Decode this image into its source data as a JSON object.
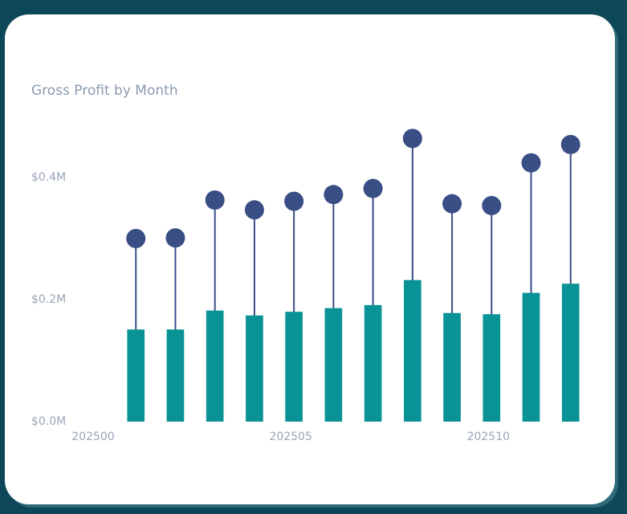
{
  "chart_data": {
    "type": "lollipop-bar",
    "title": "Gross Profit by Month",
    "x": [
      202501,
      202502,
      202503,
      202504,
      202505,
      202506,
      202507,
      202508,
      202509,
      202510,
      202511,
      202512
    ],
    "series": [
      {
        "style": "lollipop",
        "color": "#3a4e86",
        "values": [
          300000,
          301000,
          363000,
          347000,
          361000,
          372000,
          382000,
          464000,
          357000,
          354000,
          424000,
          454000
        ]
      },
      {
        "style": "bar",
        "color": "#0a9396",
        "values": [
          151000,
          151000,
          182000,
          174000,
          180000,
          186000,
          191000,
          232000,
          178000,
          176000,
          211000,
          226000
        ]
      }
    ],
    "xlim": [
      202500,
      202513
    ],
    "xticks": [
      202500,
      202505,
      202510
    ],
    "ylim": [
      0,
      500000
    ],
    "yticks": [
      {
        "value": 0,
        "label": "$0.0M"
      },
      {
        "value": 200000,
        "label": "$0.2M"
      },
      {
        "value": 400000,
        "label": "$0.4M"
      }
    ],
    "grid": false
  }
}
